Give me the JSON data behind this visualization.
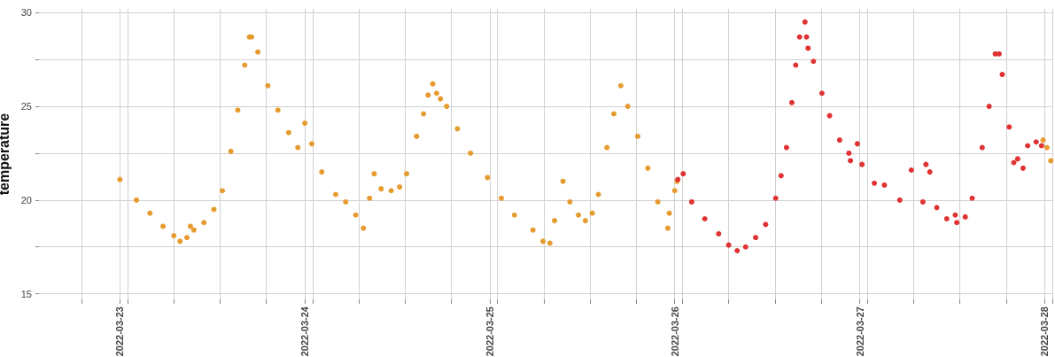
{
  "chart_data": {
    "type": "scatter",
    "ylabel": "temperature",
    "marker": "circle",
    "grid": true,
    "xlim": [
      "2022-03-22T13:30",
      "2022-03-28T01:00"
    ],
    "xticks": [
      {
        "value": "2022-03-22T19:00",
        "label": null
      },
      "2022-03-23",
      {
        "value": "2022-03-23T01:00",
        "label": null
      },
      {
        "value": "2022-03-23T07:00",
        "label": null
      },
      {
        "value": "2022-03-23T13:00",
        "label": null
      },
      {
        "value": "2022-03-23T19:00",
        "label": null
      },
      "2022-03-24",
      {
        "value": "2022-03-24T01:00",
        "label": null
      },
      {
        "value": "2022-03-24T07:00",
        "label": null
      },
      {
        "value": "2022-03-24T13:00",
        "label": null
      },
      {
        "value": "2022-03-24T19:00",
        "label": null
      },
      "2022-03-25",
      {
        "value": "2022-03-25T01:00",
        "label": null
      },
      {
        "value": "2022-03-25T07:00",
        "label": null
      },
      {
        "value": "2022-03-25T13:00",
        "label": null
      },
      {
        "value": "2022-03-25T19:00",
        "label": null
      },
      "2022-03-26",
      {
        "value": "2022-03-26T01:00",
        "label": null
      },
      {
        "value": "2022-03-26T07:00",
        "label": null
      },
      {
        "value": "2022-03-26T13:00",
        "label": null
      },
      {
        "value": "2022-03-26T19:00",
        "label": null
      },
      "2022-03-27",
      {
        "value": "2022-03-27T01:00",
        "label": null
      },
      {
        "value": "2022-03-27T07:00",
        "label": null
      },
      {
        "value": "2022-03-27T13:00",
        "label": null
      },
      {
        "value": "2022-03-27T19:00",
        "label": null
      },
      "2022-03-28",
      {
        "value": "2022-03-28T01:00",
        "label": null
      }
    ],
    "ylim": [
      14.7,
      30.2
    ],
    "yticks": [
      15,
      {
        "value": 17.5,
        "label": null
      },
      20,
      {
        "value": 22.5,
        "label": null
      },
      25,
      {
        "value": 27.5,
        "label": null
      },
      30
    ],
    "series": [
      {
        "color": "#e69b2f",
        "x": [
          "2022-03-23T00:00",
          "2022-03-23T02:09",
          "2022-03-23T03:54",
          "2022-03-23T05:36",
          "2022-03-23T07:00",
          "2022-03-23T07:48",
          "2022-03-23T08:42",
          "2022-03-23T09:09",
          "2022-03-23T09:36",
          "2022-03-23T10:54",
          "2022-03-23T12:12",
          "2022-03-23T13:18",
          "2022-03-23T14:24",
          "2022-03-23T15:18",
          "2022-03-23T16:12",
          "2022-03-23T16:48",
          "2022-03-23T17:06",
          "2022-03-23T17:54",
          "2022-03-23T19:12",
          "2022-03-23T20:30",
          "2022-03-23T21:54",
          "2022-03-23T23:06",
          "2022-03-24T00:00",
          "2022-03-24T00:54",
          "2022-03-24T02:12",
          "2022-03-24T04:00",
          "2022-03-24T05:18",
          "2022-03-24T06:36",
          "2022-03-24T07:36",
          "2022-03-24T08:24",
          "2022-03-24T09:00",
          "2022-03-24T09:54",
          "2022-03-24T11:12",
          "2022-03-24T12:18",
          "2022-03-24T13:12",
          "2022-03-24T14:30",
          "2022-03-24T15:24",
          "2022-03-24T16:00",
          "2022-03-24T16:36",
          "2022-03-24T17:06",
          "2022-03-24T17:36",
          "2022-03-24T18:24",
          "2022-03-24T19:48",
          "2022-03-24T21:30",
          "2022-03-24T23:42",
          "2022-03-25T01:30",
          "2022-03-25T03:12",
          "2022-03-25T05:36",
          "2022-03-25T06:54",
          "2022-03-25T07:48",
          "2022-03-25T08:24",
          "2022-03-25T09:30",
          "2022-03-25T10:24",
          "2022-03-25T11:30",
          "2022-03-25T12:24",
          "2022-03-25T13:18",
          "2022-03-25T14:06",
          "2022-03-25T15:12",
          "2022-03-25T16:06",
          "2022-03-25T17:00",
          "2022-03-25T17:54",
          "2022-03-25T19:12",
          "2022-03-25T20:30",
          "2022-03-25T21:48",
          "2022-03-25T23:06",
          "2022-03-25T23:18",
          "2022-03-26T00:00",
          "2022-03-26T00:18",
          "2022-03-27T23:48",
          "2022-03-28T00:18",
          "2022-03-28T00:48"
        ],
        "values": [
          21.1,
          20.0,
          19.3,
          18.6,
          18.1,
          17.8,
          18.0,
          18.6,
          18.4,
          18.8,
          19.5,
          20.5,
          22.6,
          24.8,
          27.2,
          28.7,
          28.7,
          27.9,
          26.1,
          24.8,
          23.6,
          22.8,
          24.1,
          23.0,
          21.5,
          20.3,
          19.9,
          19.2,
          18.5,
          20.1,
          21.4,
          20.6,
          20.5,
          20.7,
          21.4,
          23.4,
          24.6,
          25.6,
          26.2,
          25.7,
          25.4,
          25.0,
          23.8,
          22.5,
          21.2,
          20.1,
          19.2,
          18.4,
          17.8,
          17.7,
          18.9,
          21.0,
          19.9,
          19.2,
          18.9,
          19.3,
          20.3,
          22.8,
          24.6,
          26.1,
          25.0,
          23.4,
          21.7,
          19.9,
          18.5,
          19.3,
          20.5,
          21.0,
          23.2,
          22.8,
          22.1
        ]
      },
      {
        "color": "#e03232",
        "x": [
          "2022-03-26T00:24",
          "2022-03-26T01:06",
          "2022-03-26T02:12",
          "2022-03-26T03:54",
          "2022-03-26T05:42",
          "2022-03-26T07:00",
          "2022-03-26T08:06",
          "2022-03-26T09:12",
          "2022-03-26T10:30",
          "2022-03-26T11:48",
          "2022-03-26T13:06",
          "2022-03-26T13:48",
          "2022-03-26T14:30",
          "2022-03-26T15:12",
          "2022-03-26T15:42",
          "2022-03-26T16:12",
          "2022-03-26T16:54",
          "2022-03-26T17:06",
          "2022-03-26T17:18",
          "2022-03-26T18:00",
          "2022-03-26T19:06",
          "2022-03-26T20:06",
          "2022-03-26T21:24",
          "2022-03-26T22:36",
          "2022-03-26T22:48",
          "2022-03-26T23:42",
          "2022-03-27T00:18",
          "2022-03-27T01:54",
          "2022-03-27T03:12",
          "2022-03-27T05:12",
          "2022-03-27T06:42",
          "2022-03-27T08:12",
          "2022-03-27T08:36",
          "2022-03-27T09:06",
          "2022-03-27T10:00",
          "2022-03-27T11:18",
          "2022-03-27T12:24",
          "2022-03-27T12:36",
          "2022-03-27T13:42",
          "2022-03-27T14:36",
          "2022-03-27T15:54",
          "2022-03-27T16:48",
          "2022-03-27T17:36",
          "2022-03-27T18:06",
          "2022-03-27T18:30",
          "2022-03-27T19:24",
          "2022-03-27T20:00",
          "2022-03-27T20:30",
          "2022-03-27T21:12",
          "2022-03-27T21:48",
          "2022-03-27T22:54",
          "2022-03-27T23:36"
        ],
        "values": [
          21.1,
          21.4,
          19.9,
          19.0,
          18.2,
          17.6,
          17.3,
          17.5,
          18.0,
          18.7,
          20.1,
          21.3,
          22.8,
          25.2,
          27.2,
          28.7,
          29.5,
          28.7,
          28.1,
          27.4,
          25.7,
          24.5,
          23.2,
          22.5,
          22.1,
          23.0,
          21.9,
          20.9,
          20.8,
          20.0,
          21.6,
          19.9,
          21.9,
          21.5,
          19.6,
          19.0,
          19.2,
          18.8,
          19.1,
          20.1,
          22.8,
          25.0,
          27.8,
          27.8,
          26.7,
          23.9,
          22.0,
          22.2,
          21.7,
          22.9,
          23.1,
          22.9
        ]
      }
    ]
  }
}
